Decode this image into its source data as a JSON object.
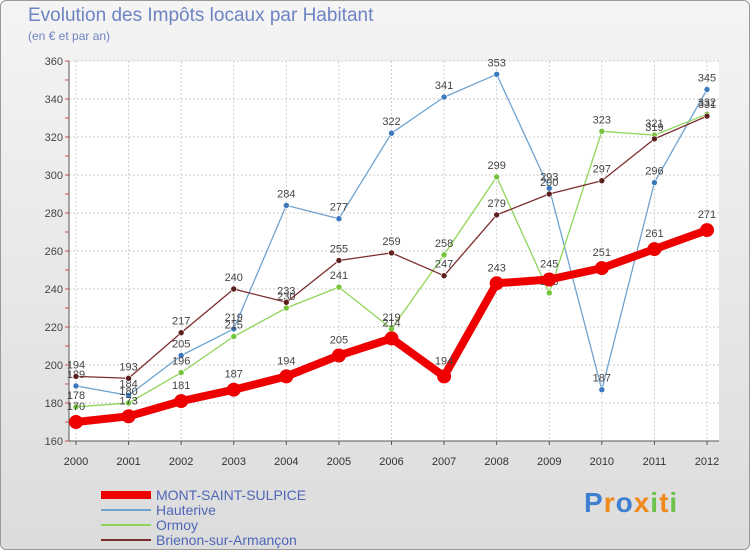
{
  "chart_data": {
    "type": "line",
    "title": "Evolution des Impôts locaux par Habitant",
    "subtitle": "(en € et par an)",
    "categories": [
      "2000",
      "2001",
      "2002",
      "2003",
      "2004",
      "2005",
      "2006",
      "2007",
      "2008",
      "2009",
      "2010",
      "2011",
      "2012"
    ],
    "ylim": [
      160,
      360
    ],
    "yticks": [
      160,
      180,
      200,
      220,
      240,
      260,
      280,
      300,
      320,
      340,
      360
    ],
    "grid": true,
    "series": [
      {
        "name": "Hauterive",
        "color": "#6fa3cf",
        "marker": "#3b78bd",
        "values": [
          189,
          184,
          205,
          219,
          284,
          277,
          322,
          341,
          353,
          293,
          187,
          296,
          345
        ],
        "labels": [
          "189",
          "184",
          "205",
          "219",
          "284",
          "277",
          "322",
          "341",
          "353",
          "293",
          "187",
          "296",
          "345"
        ]
      },
      {
        "name": "Ormoy",
        "color": "#8fd55b",
        "marker": "#74c43a",
        "values": [
          178,
          180,
          196,
          215,
          230,
          241,
          219,
          258,
          299,
          238,
          323,
          321,
          332
        ],
        "labels": [
          "178",
          "180",
          "196",
          "215",
          "230",
          "241",
          "219",
          "258",
          "299",
          "238",
          "323",
          "321",
          "332"
        ]
      },
      {
        "name": "Brienon-sur-Armançon",
        "color": "#7a2d2d",
        "marker": "#5e1f1f",
        "values": [
          194,
          193,
          217,
          240,
          233,
          255,
          259,
          247,
          279,
          290,
          297,
          319,
          331
        ],
        "labels": [
          "194",
          "193",
          "217",
          "240",
          "233",
          "255",
          "259",
          "247",
          "279",
          "290",
          "297",
          "319",
          "331"
        ]
      },
      {
        "name": "MONT-SAINT-SULPICE",
        "color": "#ee0000",
        "marker": "#ee0000",
        "values": [
          170,
          173,
          181,
          187,
          194,
          205,
          214,
          194,
          243,
          245,
          251,
          261,
          271
        ],
        "labels": [
          "170",
          "173",
          "181",
          "187",
          "194",
          "205",
          "214",
          "194",
          "243",
          "245",
          "251",
          "261",
          "271"
        ]
      }
    ]
  },
  "legend": [
    {
      "label": "MONT-SAINT-SULPICE",
      "color": "#ee0000"
    },
    {
      "label": "Hauterive",
      "color": "#6fa3cf"
    },
    {
      "label": "Ormoy",
      "color": "#8fd55b"
    },
    {
      "label": "Brienon-sur-Armançon",
      "color": "#7a2d2d"
    }
  ],
  "logo": {
    "letters": [
      "P",
      "r",
      "o",
      "x",
      "i",
      "t",
      "i"
    ],
    "colors": [
      "#3f7fd0",
      "#f08a1c",
      "#3f7fd0",
      "#f08a1c",
      "#6cc24a",
      "#f08a1c",
      "#6cc24a"
    ]
  }
}
